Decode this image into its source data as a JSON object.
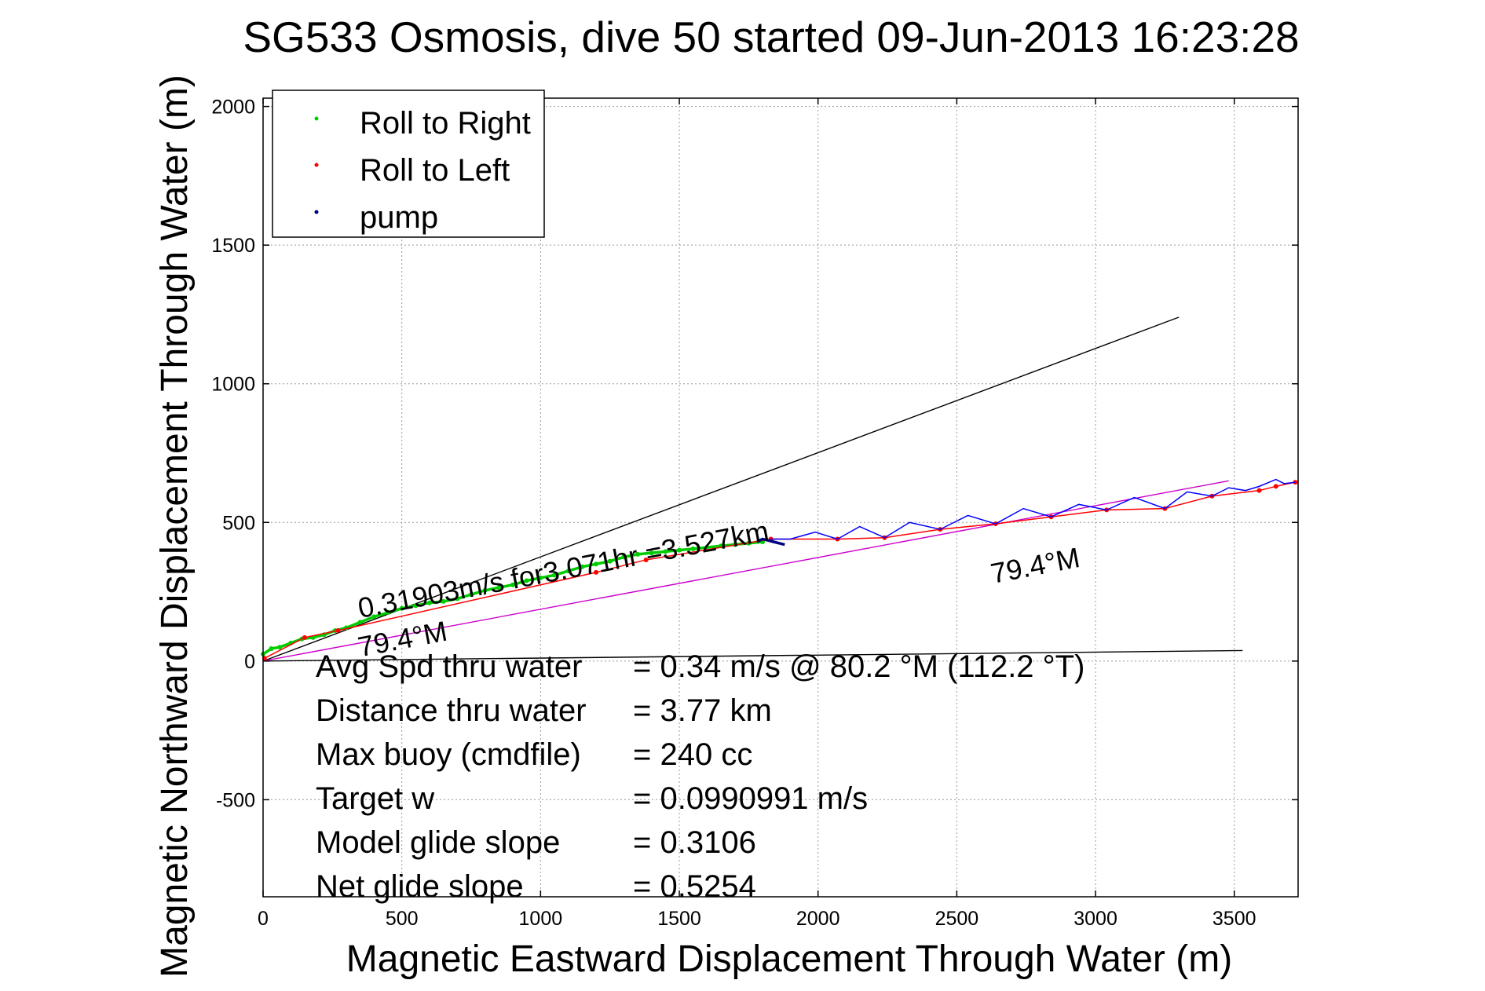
{
  "chart_data": {
    "type": "line",
    "title": "SG533 Osmosis, dive 50 started 09-Jun-2013 16:23:28",
    "xlabel": "Magnetic Eastward Displacement Through Water (m)",
    "ylabel": "Magnetic Northward Displacement Through Water (m)",
    "xlim": [
      0,
      3730
    ],
    "ylim": [
      -850,
      2030
    ],
    "x_ticks": [
      0,
      500,
      1000,
      1500,
      2000,
      2500,
      3000,
      3500
    ],
    "x_tick_labels": [
      "0",
      "500",
      "1000",
      "1500",
      "2000",
      "2500",
      "3000",
      "3500"
    ],
    "y_ticks": [
      -500,
      0,
      500,
      1000,
      1500,
      2000
    ],
    "y_tick_labels": [
      "-500",
      "0",
      "500",
      "1000",
      "1500",
      "2000"
    ],
    "grid": true,
    "legend": {
      "position": "top-left",
      "entries": [
        {
          "label": "Roll to Right",
          "color": "#00cc00"
        },
        {
          "label": "Roll to Left",
          "color": "#ff0000"
        },
        {
          "label": "pump",
          "color": "#000080"
        }
      ]
    },
    "series": [
      {
        "name": "Roll to Right",
        "color": "#00cc00",
        "x": [
          0,
          30,
          60,
          100,
          140,
          180,
          220,
          260,
          300,
          350,
          400,
          450,
          500,
          550,
          600,
          650,
          700,
          750,
          800,
          850,
          900,
          950,
          1000,
          1050,
          1100,
          1150,
          1200,
          1250,
          1300,
          1350,
          1400,
          1450,
          1500,
          1550,
          1600,
          1650,
          1700,
          1750,
          1800
        ],
        "y": [
          25,
          45,
          50,
          65,
          80,
          85,
          95,
          110,
          120,
          140,
          160,
          175,
          190,
          200,
          210,
          215,
          225,
          240,
          255,
          265,
          275,
          290,
          300,
          310,
          325,
          340,
          350,
          360,
          375,
          385,
          390,
          395,
          400,
          405,
          410,
          415,
          420,
          425,
          430
        ]
      },
      {
        "name": "Roll to Left",
        "color": "#ff0000",
        "x": [
          5,
          150,
          270,
          1200,
          1380,
          1830,
          2070,
          2240,
          2440,
          2640,
          2840,
          3040,
          3250,
          3420,
          3590,
          3650,
          3720
        ],
        "y": [
          10,
          85,
          110,
          320,
          365,
          440,
          440,
          445,
          475,
          495,
          520,
          545,
          550,
          595,
          615,
          630,
          645
        ]
      },
      {
        "name": "pump",
        "color": "#000080",
        "x": [
          1780,
          1800,
          1820,
          1840,
          1860,
          1880
        ],
        "y": [
          430,
          440,
          435,
          430,
          425,
          420
        ]
      },
      {
        "name": "",
        "color": "#0000ff",
        "x": [
          1830,
          1900,
          1990,
          2070,
          2150,
          2240,
          2330,
          2440,
          2540,
          2640,
          2740,
          2840,
          2940,
          3040,
          3140,
          3250,
          3330,
          3420,
          3480,
          3540,
          3590,
          3650,
          3680,
          3720
        ],
        "y": [
          440,
          440,
          465,
          440,
          485,
          445,
          500,
          475,
          525,
          495,
          550,
          520,
          565,
          545,
          590,
          550,
          610,
          595,
          625,
          615,
          630,
          655,
          640,
          645
        ]
      }
    ],
    "reference_lines": [
      {
        "color": "#000000",
        "x": [
          0,
          3300
        ],
        "y": [
          0,
          1240
        ]
      },
      {
        "color": "#000000",
        "x": [
          0,
          3530
        ],
        "y": [
          0,
          38
        ]
      },
      {
        "color": "#cc00cc",
        "x": [
          0,
          3480
        ],
        "y": [
          0,
          650
        ]
      }
    ],
    "annotations": [
      {
        "text": "0.31903m/s for3.071hr =3.527km",
        "x": 350,
        "y": 155,
        "rotate": -10.8
      },
      {
        "text": "79.4°M",
        "x": 350,
        "y": 15,
        "rotate": -10.8
      },
      {
        "text": "79.4°M",
        "x": 2630,
        "y": 280,
        "rotate": -10.8
      }
    ],
    "info_table": [
      {
        "label": "Avg Spd thru water",
        "value": "=  0.34 m/s @  80.2 °M (112.2 °T)"
      },
      {
        "label": "Distance thru water",
        "value": "=  3.77 km"
      },
      {
        "label": "Max buoy (cmdfile)",
        "value": "= 240 cc"
      },
      {
        "label": "Target w",
        "value": "= 0.0990991 m/s"
      },
      {
        "label": "Model glide slope",
        "value": "= 0.3106"
      },
      {
        "label": "Net glide slope",
        "value": "= 0.5254"
      }
    ]
  }
}
